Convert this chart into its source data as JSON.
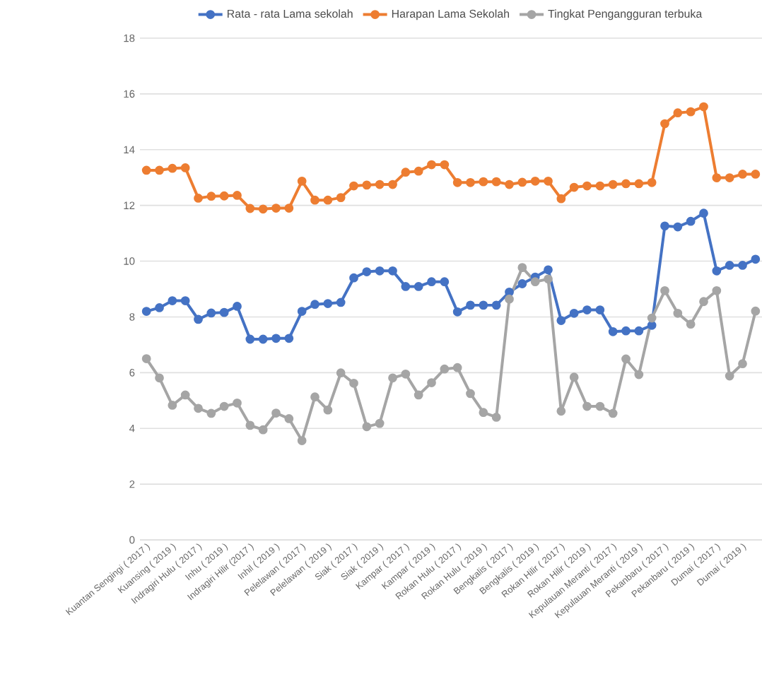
{
  "chart_data": {
    "type": "line",
    "categories": [
      "Kuantan Sengingi ( 2017 )",
      null,
      "Kuansing ( 2019 )",
      null,
      "Indragiri Hulu ( 2017 )",
      null,
      "Inhu ( 2019 )",
      null,
      "Indragiri Hilir (2017 )",
      null,
      "Inhil ( 2019 )",
      null,
      "Pelelawan ( 2017 )",
      null,
      "Pelelawan ( 2019 )",
      null,
      "Siak ( 2017 )",
      null,
      "Siak ( 2019 )",
      null,
      "Kampar ( 2017 )",
      null,
      "Kampar ( 2019 )",
      null,
      "Rokan Hulu ( 2017 )",
      null,
      "Rokan Hulu ( 2019 )",
      null,
      "Bengkalis ( 2017 )",
      null,
      "Bengkalis ( 2019 )",
      null,
      "Rokan Hilir ( 2017 )",
      null,
      "Rokan Hilir ( 2019 )",
      null,
      "Kepulauan Meranti ( 2017 )",
      null,
      "Kepulauan Meranti ( 2019 )",
      null,
      "Pekanbaru ( 2017 )",
      null,
      "Pekanbaru ( 2019 )",
      null,
      "Dumai ( 2017 )",
      null,
      "Dumai ( 2019 )",
      null
    ],
    "series": [
      {
        "name": "Rata - rata Lama sekolah",
        "color": "#4472c4",
        "values": [
          8.2,
          8.33,
          8.58,
          8.58,
          7.91,
          8.14,
          8.16,
          8.38,
          7.2,
          7.2,
          7.23,
          7.23,
          8.2,
          8.45,
          8.48,
          8.52,
          9.4,
          9.62,
          9.65,
          9.65,
          9.09,
          9.09,
          9.26,
          9.26,
          8.18,
          8.42,
          8.42,
          8.42,
          8.89,
          9.19,
          9.43,
          9.69,
          7.87,
          8.13,
          8.25,
          8.25,
          7.47,
          7.5,
          7.5,
          7.7,
          11.26,
          11.23,
          11.43,
          11.72,
          9.65,
          9.85,
          9.85,
          10.07
        ]
      },
      {
        "name": "Harapan Lama Sekolah",
        "color": "#ed7d31",
        "values": [
          13.26,
          13.26,
          13.33,
          13.35,
          12.26,
          12.33,
          12.34,
          12.36,
          11.89,
          11.87,
          11.9,
          11.9,
          12.87,
          12.19,
          12.19,
          12.28,
          12.7,
          12.73,
          12.75,
          12.75,
          13.19,
          13.23,
          13.46,
          13.46,
          12.82,
          12.82,
          12.85,
          12.85,
          12.75,
          12.83,
          12.87,
          12.87,
          12.24,
          12.65,
          12.7,
          12.7,
          12.75,
          12.78,
          12.78,
          12.82,
          14.93,
          15.32,
          15.36,
          15.54,
          12.99,
          12.99,
          13.12,
          13.12
        ]
      },
      {
        "name": "Tingkat Pengangguran terbuka",
        "color": "#a5a5a5",
        "values": [
          6.5,
          5.81,
          4.83,
          5.2,
          4.72,
          4.54,
          4.79,
          4.91,
          4.11,
          3.95,
          4.55,
          4.35,
          3.56,
          5.13,
          4.66,
          5.99,
          5.62,
          4.06,
          4.18,
          5.81,
          5.95,
          5.2,
          5.64,
          6.13,
          6.18,
          5.25,
          4.57,
          4.4,
          8.64,
          9.77,
          9.26,
          9.36,
          4.62,
          5.84,
          4.79,
          4.79,
          4.54,
          6.49,
          5.93,
          7.96,
          8.94,
          8.13,
          7.74,
          8.55,
          8.94,
          5.88,
          6.32,
          8.21
        ]
      }
    ],
    "ylim": [
      0,
      18
    ],
    "yticks": [
      0,
      2,
      4,
      6,
      8,
      10,
      12,
      14,
      16,
      18
    ],
    "grid": "y",
    "legend": "top",
    "marker": "circle"
  }
}
